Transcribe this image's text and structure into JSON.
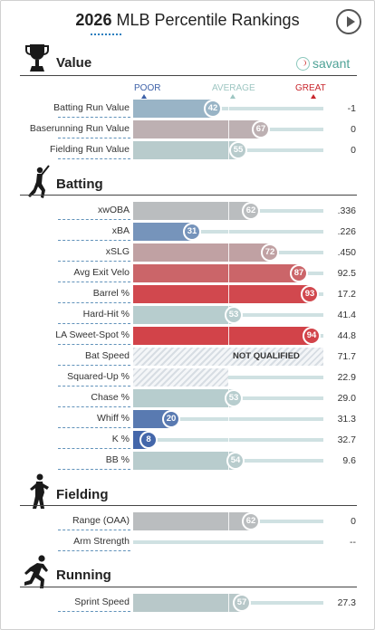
{
  "header": {
    "year": "2026",
    "title": "MLB Percentile Rankings"
  },
  "brand": {
    "name": "savant"
  },
  "scale": {
    "poor": "POOR",
    "average": "AVERAGE",
    "great": "GREAT"
  },
  "sections": [
    {
      "title": "Value",
      "icon": "trophy-icon",
      "rows": [
        {
          "label": "Batting Run Value",
          "pct": 42,
          "value": "-1"
        },
        {
          "label": "Baserunning Run Value",
          "pct": 67,
          "value": "0"
        },
        {
          "label": "Fielding Run Value",
          "pct": 55,
          "value": "0"
        }
      ]
    },
    {
      "title": "Batting",
      "icon": "batter-icon",
      "rows": [
        {
          "label": "xwOBA",
          "pct": 62,
          "value": ".336"
        },
        {
          "label": "xBA",
          "pct": 31,
          "value": ".226"
        },
        {
          "label": "xSLG",
          "pct": 72,
          "value": ".450"
        },
        {
          "label": "Avg Exit Velo",
          "pct": 87,
          "value": "92.5"
        },
        {
          "label": "Barrel %",
          "pct": 93,
          "value": "17.2"
        },
        {
          "label": "Hard-Hit %",
          "pct": 53,
          "value": "41.4"
        },
        {
          "label": "LA Sweet-Spot %",
          "pct": 94,
          "value": "44.8"
        },
        {
          "label": "Bat Speed",
          "pct": null,
          "status": "NOT QUALIFIED",
          "value": "71.7"
        },
        {
          "label": "Squared-Up %",
          "pct": null,
          "value": "22.9"
        },
        {
          "label": "Chase %",
          "pct": 53,
          "value": "29.0"
        },
        {
          "label": "Whiff %",
          "pct": 20,
          "value": "31.3"
        },
        {
          "label": "K %",
          "pct": 8,
          "value": "32.7"
        },
        {
          "label": "BB %",
          "pct": 54,
          "value": "9.6"
        }
      ]
    },
    {
      "title": "Fielding",
      "icon": "fielder-icon",
      "rows": [
        {
          "label": "Range (OAA)",
          "pct": 62,
          "value": "0"
        },
        {
          "label": "Arm Strength",
          "pct": null,
          "value": "--"
        }
      ]
    },
    {
      "title": "Running",
      "icon": "runner-icon",
      "rows": [
        {
          "label": "Sprint Speed",
          "pct": 57,
          "value": "27.3"
        }
      ]
    }
  ],
  "colors": {
    "poor_blue": "#3d61a8",
    "average": "#b7cfd0",
    "great_red": "#d8232a",
    "scale_avg_text": "#9ec6c2",
    "scale_great_text": "#c8262c"
  }
}
